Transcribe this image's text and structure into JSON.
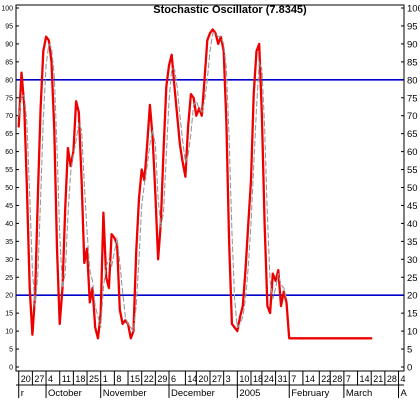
{
  "chart_data": {
    "type": "line",
    "title": "Stochastic Oscillator (7.8345)",
    "ylim": [
      0,
      100
    ],
    "y_ticks": [
      0,
      5,
      10,
      15,
      20,
      25,
      30,
      35,
      40,
      45,
      50,
      55,
      60,
      65,
      70,
      75,
      80,
      85,
      90,
      95,
      100
    ],
    "y_tick_labels_left": [
      "0",
      "5",
      "10",
      "15",
      "20",
      "25",
      "30",
      "35",
      "40",
      "45",
      "50",
      "55",
      "60",
      "65",
      "70",
      "75",
      "80",
      "85",
      "90",
      "95",
      "100"
    ],
    "grid": false,
    "reference_lines": [
      {
        "value": 80,
        "color": "#0000cc"
      },
      {
        "value": 20,
        "color": "#0000cc"
      }
    ],
    "x_ticks": [
      "20",
      "27",
      "4",
      "11",
      "18",
      "25",
      "1",
      "8",
      "15",
      "22",
      "29",
      "6",
      "14",
      "20",
      "27",
      "3",
      "10",
      "18",
      "24",
      "31",
      "7",
      "14",
      "22",
      "28",
      "7",
      "14",
      "21",
      "28",
      "4"
    ],
    "x_tick_positions": [
      0,
      5,
      10,
      15,
      20,
      25,
      30,
      35,
      40,
      45,
      50,
      55,
      61,
      65,
      70,
      75,
      80,
      85,
      89,
      94,
      99,
      104,
      110,
      114,
      119,
      124,
      129,
      134,
      139
    ],
    "month_labels": [
      {
        "label": "r",
        "at": 0
      },
      {
        "label": "October",
        "at": 10
      },
      {
        "label": "November",
        "at": 30
      },
      {
        "label": "December",
        "at": 55
      },
      {
        "label": "2005",
        "at": 80
      },
      {
        "label": "February",
        "at": 99
      },
      {
        "label": "March",
        "at": 119
      },
      {
        "label": "A",
        "at": 139
      }
    ],
    "xlim": [
      -1,
      141
    ],
    "series": [
      {
        "style": "solid",
        "color": "#ee0000",
        "x": [
          0,
          1,
          2,
          3,
          4,
          5,
          6,
          7,
          8,
          9,
          10,
          11,
          12,
          13,
          14,
          15,
          16,
          17,
          18,
          19,
          20,
          21,
          22,
          23,
          24,
          25,
          26,
          27,
          28,
          29,
          30,
          31,
          32,
          33,
          34,
          35,
          36,
          37,
          38,
          39,
          40,
          41,
          42,
          43,
          44,
          45,
          46,
          47,
          48,
          49,
          50,
          51,
          52,
          53,
          54,
          55,
          56,
          57,
          58,
          59,
          60,
          61,
          62,
          63,
          64,
          65,
          66,
          67,
          68,
          69,
          70,
          71,
          72,
          73,
          74,
          75,
          76,
          77,
          78,
          79,
          80,
          81,
          82,
          83,
          84,
          85,
          86,
          87,
          88,
          89,
          90,
          91,
          92,
          93,
          94,
          95,
          96,
          97,
          98,
          99,
          100,
          101,
          102,
          103,
          104,
          105,
          106,
          107,
          108,
          109,
          110,
          111,
          112,
          113,
          114,
          115,
          116,
          117,
          118,
          119,
          120,
          121,
          122,
          123,
          124,
          125,
          126,
          127,
          128,
          129
        ],
        "y": [
          67,
          82,
          73,
          50,
          22,
          9,
          20,
          48,
          72,
          88,
          92,
          91,
          85,
          66,
          33,
          12,
          22,
          44,
          61,
          56,
          60,
          74,
          71,
          52,
          29,
          33,
          18,
          22,
          11,
          8,
          15,
          43,
          25,
          22,
          37,
          36,
          34,
          16,
          12,
          13,
          12,
          8,
          10,
          32,
          47,
          55,
          52,
          62,
          73,
          64,
          48,
          30,
          40,
          60,
          78,
          84,
          87,
          78,
          70,
          62,
          57,
          53,
          67,
          76,
          75,
          70,
          72,
          70,
          80,
          91,
          93,
          94,
          93,
          90,
          92,
          88,
          68,
          35,
          12,
          11,
          10,
          14,
          17,
          27,
          40,
          52,
          76,
          88,
          90,
          70,
          40,
          17,
          15,
          26,
          24,
          27,
          17,
          21,
          18,
          8,
          8,
          8,
          8,
          8,
          8,
          8,
          8,
          8,
          8,
          8,
          8,
          8,
          8,
          8,
          8,
          8,
          8,
          8,
          8,
          8,
          8,
          8,
          8,
          8,
          8,
          8,
          8,
          8,
          8,
          8
        ]
      },
      {
        "style": "dashed",
        "color": "#999999",
        "x": [
          0,
          1,
          2,
          3,
          4,
          5,
          6,
          7,
          8,
          9,
          10,
          11,
          12,
          13,
          14,
          15,
          16,
          17,
          18,
          19,
          20,
          21,
          22,
          23,
          24,
          25,
          26,
          27,
          28,
          29,
          30,
          31,
          32,
          33,
          34,
          35,
          36,
          37,
          38,
          39,
          40,
          41,
          42,
          43,
          44,
          45,
          46,
          47,
          48,
          49,
          50,
          51,
          52,
          53,
          54,
          55,
          56,
          57,
          58,
          59,
          60,
          61,
          62,
          63,
          64,
          65,
          66,
          67,
          68,
          69,
          70,
          71,
          72,
          73,
          74,
          75,
          76,
          77,
          78,
          79,
          80,
          81,
          82,
          83,
          84,
          85,
          86,
          87,
          88,
          89,
          90,
          91,
          92,
          93,
          94,
          95,
          96,
          97,
          98
        ],
        "y": [
          70,
          75,
          76,
          68,
          48,
          27,
          17,
          26,
          47,
          69,
          84,
          90,
          89,
          81,
          61,
          37,
          22,
          26,
          42,
          54,
          59,
          63,
          68,
          66,
          51,
          38,
          27,
          24,
          17,
          14,
          11,
          22,
          28,
          30,
          28,
          32,
          36,
          29,
          21,
          14,
          12,
          11,
          10,
          17,
          30,
          45,
          51,
          56,
          62,
          66,
          62,
          47,
          39,
          43,
          59,
          74,
          83,
          83,
          78,
          70,
          63,
          57,
          59,
          65,
          73,
          74,
          72,
          71,
          74,
          80,
          88,
          93,
          93,
          92,
          92,
          90,
          83,
          64,
          38,
          19,
          11,
          12,
          14,
          19,
          28,
          40,
          56,
          72,
          85,
          83,
          67,
          42,
          24,
          19,
          22,
          26,
          23,
          22,
          19
        ]
      }
    ]
  }
}
